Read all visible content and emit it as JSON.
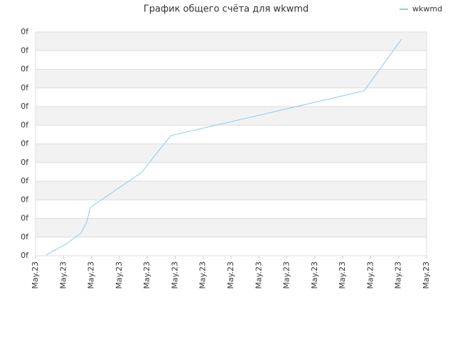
{
  "chart_data": {
    "type": "line",
    "title": "График общего счёта для wkwmd",
    "x": [
      0.38,
      1.07,
      1.63,
      1.83,
      1.96,
      3.79,
      4.84,
      11.76,
      13.11
    ],
    "series": [
      {
        "name": "wkwmd",
        "color": "#8ec8f0",
        "values": [
          0.04,
          0.61,
          1.22,
          1.79,
          2.59,
          4.46,
          6.44,
          8.84,
          11.62
        ]
      }
    ],
    "xlim": [
      0,
      14
    ],
    "xticks": [
      {
        "value": 0,
        "label": "May.23"
      },
      {
        "value": 1,
        "label": "May.23"
      },
      {
        "value": 2,
        "label": "May.23"
      },
      {
        "value": 3,
        "label": "May.23"
      },
      {
        "value": 4,
        "label": "May.23"
      },
      {
        "value": 5,
        "label": "May.23"
      },
      {
        "value": 6,
        "label": "May.23"
      },
      {
        "value": 7,
        "label": "May.23"
      },
      {
        "value": 8,
        "label": "May.23"
      },
      {
        "value": 9,
        "label": "May.23"
      },
      {
        "value": 10,
        "label": "May.23"
      },
      {
        "value": 11,
        "label": "May.23"
      },
      {
        "value": 12,
        "label": "May.23"
      },
      {
        "value": 13,
        "label": "May.23"
      },
      {
        "value": 14,
        "label": "May.23"
      }
    ],
    "ylim": [
      0,
      12
    ],
    "yticks": [
      {
        "value": 0,
        "label": "0f"
      },
      {
        "value": 1,
        "label": "0f"
      },
      {
        "value": 2,
        "label": "0f"
      },
      {
        "value": 3,
        "label": "0f"
      },
      {
        "value": 4,
        "label": "0f"
      },
      {
        "value": 5,
        "label": "0f"
      },
      {
        "value": 6,
        "label": "0f"
      },
      {
        "value": 7,
        "label": "0f"
      },
      {
        "value": 8,
        "label": "0f"
      },
      {
        "value": 9,
        "label": "0f"
      },
      {
        "value": 10,
        "label": "0f"
      },
      {
        "value": 11,
        "label": "0f"
      },
      {
        "value": 12,
        "label": "0f"
      }
    ],
    "grid": true,
    "legend": "top-right"
  }
}
